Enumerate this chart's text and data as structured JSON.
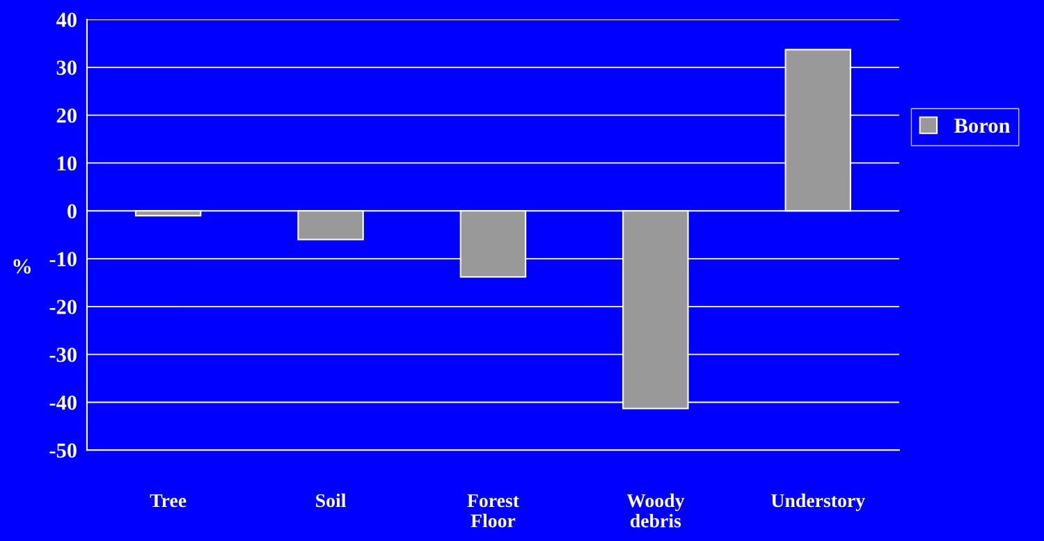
{
  "chart_data": {
    "type": "bar",
    "ylabel": "%",
    "categories": [
      "Tree",
      "Soil",
      "Forest\nFloor",
      "Woody\ndebris",
      "Understory"
    ],
    "series": [
      {
        "name": "Boron",
        "color": "#999999",
        "values": [
          -1.0,
          -6.0,
          -13.8,
          -41.3,
          33.7
        ]
      }
    ],
    "ylim": [
      -50,
      40
    ],
    "yticks": [
      -50,
      -40,
      -30,
      -20,
      -10,
      0,
      10,
      20,
      30,
      40
    ],
    "grid": "y",
    "legend": "right"
  }
}
